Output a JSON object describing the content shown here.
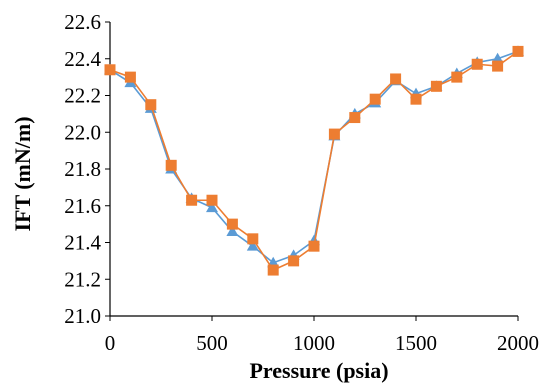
{
  "chart_data": {
    "type": "line",
    "title": "",
    "xlabel": "Pressure (psia)",
    "ylabel": "IFT (mN/m)",
    "xlim": [
      0,
      2000
    ],
    "ylim": [
      21.0,
      22.6
    ],
    "xticks": [
      0,
      500,
      1000,
      1500,
      2000
    ],
    "xtick_labels": [
      "0",
      "500",
      "1000",
      "1500",
      "2000"
    ],
    "yticks": [
      21.0,
      21.2,
      21.4,
      21.6,
      21.8,
      22.0,
      22.2,
      22.4,
      22.6
    ],
    "ytick_labels": [
      "21.0",
      "21.2",
      "21.4",
      "21.6",
      "21.8",
      "22.0",
      "22.2",
      "22.4",
      "22.6"
    ],
    "grid": false,
    "legend": "none",
    "x": [
      0,
      100,
      200,
      300,
      400,
      500,
      600,
      700,
      800,
      900,
      1000,
      1100,
      1200,
      1300,
      1400,
      1500,
      1600,
      1700,
      1800,
      1900,
      2000
    ],
    "series": [
      {
        "color": "#5b9bd5",
        "marker": "triangle",
        "values": [
          22.34,
          22.27,
          22.13,
          21.8,
          21.64,
          21.59,
          21.46,
          21.38,
          21.29,
          21.33,
          21.41,
          21.98,
          22.1,
          22.16,
          22.28,
          22.21,
          22.25,
          22.32,
          22.38,
          22.4,
          22.44
        ]
      },
      {
        "color": "#ed7d31",
        "marker": "square",
        "values": [
          22.34,
          22.3,
          22.15,
          21.82,
          21.63,
          21.63,
          21.5,
          21.42,
          21.25,
          21.3,
          21.38,
          21.99,
          22.08,
          22.18,
          22.29,
          22.18,
          22.25,
          22.3,
          22.37,
          22.36,
          22.44
        ]
      }
    ]
  }
}
